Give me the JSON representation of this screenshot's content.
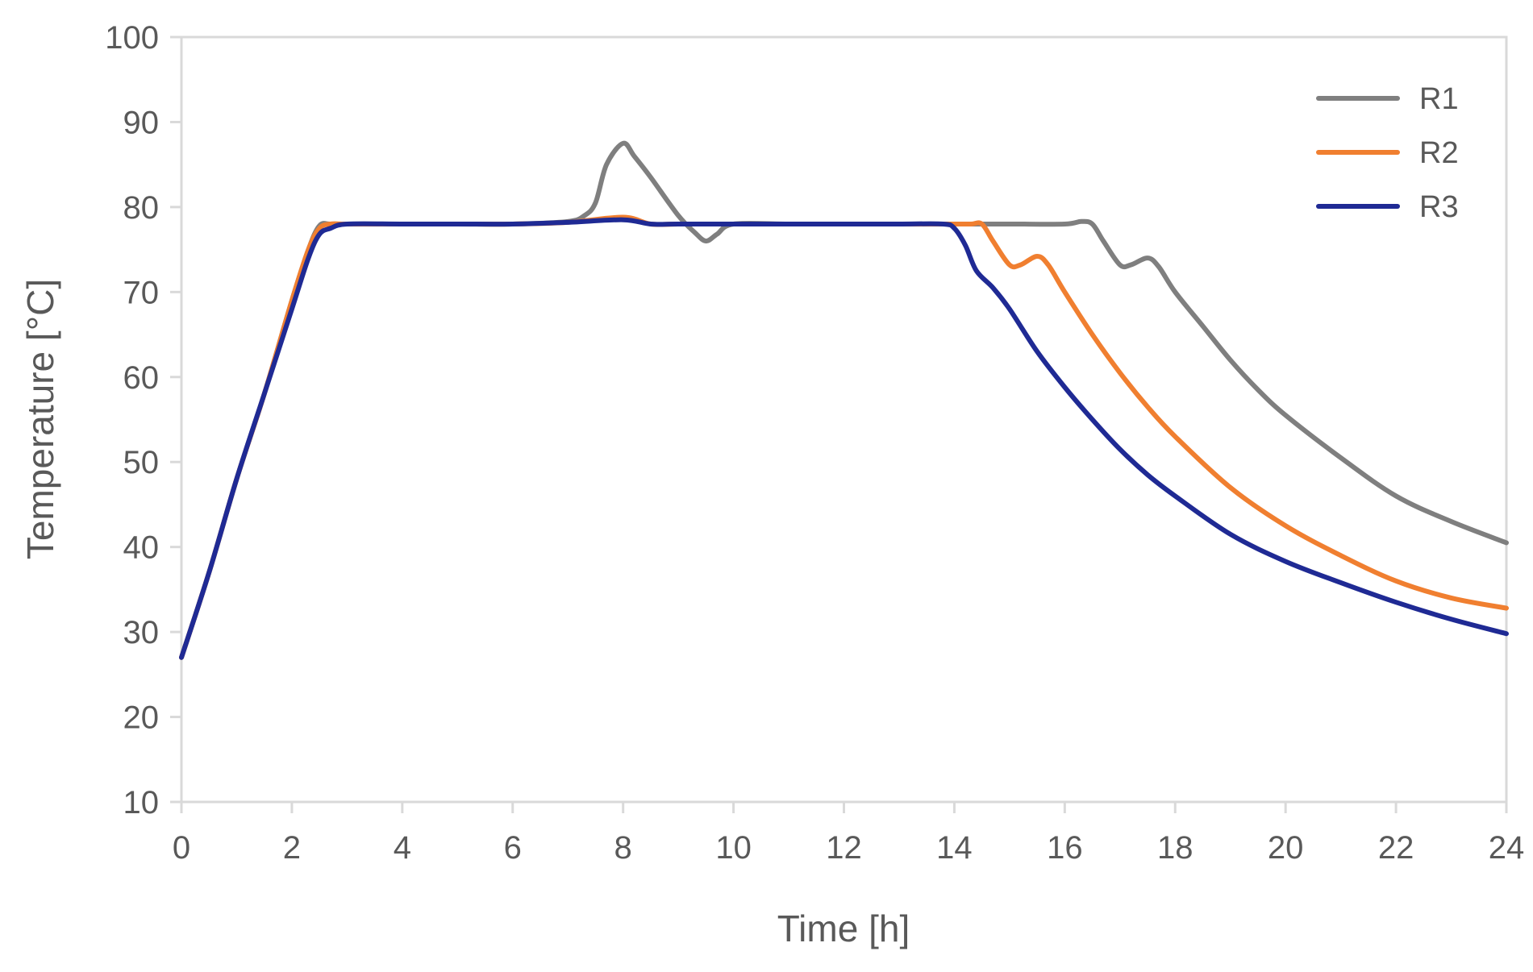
{
  "chart_data": {
    "type": "line",
    "title": "",
    "xlabel": "Time [h]",
    "ylabel": "Temperature [°C]",
    "xlim": [
      0,
      24
    ],
    "ylim": [
      10,
      100
    ],
    "xticks": [
      "0",
      "2",
      "4",
      "6",
      "8",
      "10",
      "12",
      "14",
      "16",
      "18",
      "20",
      "22",
      "24"
    ],
    "yticks": [
      "10",
      "20",
      "30",
      "40",
      "50",
      "60",
      "70",
      "80",
      "90",
      "100"
    ],
    "grid": false,
    "legend_position": "top-right",
    "series": [
      {
        "name": "R1",
        "color": "#7f7f7f",
        "x": [
          0,
          0.5,
          1,
          1.5,
          2,
          2.3,
          2.5,
          2.7,
          3,
          4,
          5,
          6,
          7,
          7.3,
          7.5,
          7.7,
          8,
          8.2,
          8.5,
          9,
          9.3,
          9.5,
          9.7,
          10,
          11,
          12,
          13,
          14,
          15,
          16,
          16.3,
          16.5,
          16.7,
          17,
          17.2,
          17.5,
          17.7,
          18,
          18.5,
          19,
          19.5,
          20,
          21,
          22,
          23,
          24
        ],
        "values": [
          27,
          37,
          48,
          58,
          69,
          75,
          77.8,
          78,
          78,
          78,
          78,
          78,
          78.3,
          79,
          80.5,
          85,
          87.5,
          86,
          83.5,
          79,
          77,
          76,
          76.8,
          78,
          78,
          78,
          78,
          78,
          78,
          78,
          78.3,
          78,
          76,
          73.2,
          73.2,
          74,
          73,
          70,
          66,
          62,
          58.5,
          55.5,
          50.5,
          46,
          43,
          40.5
        ]
      },
      {
        "name": "R2",
        "color": "#f07f30",
        "x": [
          0,
          0.5,
          1,
          1.5,
          2,
          2.3,
          2.5,
          2.7,
          3,
          4,
          5,
          6,
          7,
          8,
          8.5,
          9,
          10,
          11,
          12,
          13,
          14,
          14.3,
          14.5,
          14.7,
          15,
          15.2,
          15.5,
          15.7,
          16,
          16.5,
          17,
          17.5,
          18,
          19,
          20,
          21,
          22,
          23,
          24
        ],
        "values": [
          27,
          37,
          48,
          58,
          69,
          75,
          77.5,
          78,
          78,
          78,
          78,
          78,
          78.2,
          78.8,
          78,
          78,
          78,
          78,
          78,
          78,
          78,
          78,
          78,
          76,
          73.2,
          73.2,
          74.2,
          73.2,
          70,
          65,
          60.5,
          56.5,
          53,
          47,
          42.5,
          39,
          36,
          34,
          32.8
        ]
      },
      {
        "name": "R3",
        "color": "#1f2a94",
        "x": [
          0,
          0.5,
          1,
          1.5,
          2,
          2.3,
          2.5,
          2.7,
          3,
          4,
          5,
          6,
          7,
          8,
          8.5,
          9,
          10,
          11,
          12,
          13,
          13.8,
          14,
          14.2,
          14.4,
          14.7,
          15,
          15.5,
          16,
          16.5,
          17,
          17.5,
          18,
          19,
          20,
          21,
          22,
          23,
          24
        ],
        "values": [
          27,
          37,
          48,
          58,
          68,
          74,
          76.8,
          77.5,
          78,
          78,
          78,
          78,
          78.2,
          78.5,
          78,
          78,
          78,
          78,
          78,
          78,
          78,
          77.5,
          75.5,
          72.5,
          70.5,
          68,
          63,
          58.8,
          55,
          51.5,
          48.5,
          46,
          41.5,
          38.3,
          35.8,
          33.5,
          31.5,
          29.8
        ]
      }
    ]
  }
}
